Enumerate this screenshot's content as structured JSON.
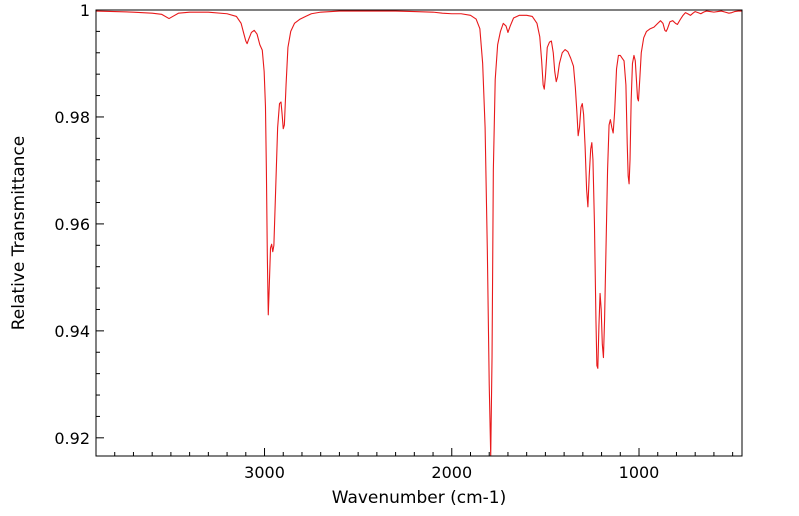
{
  "chart_data": {
    "type": "line",
    "title": "",
    "xlabel": "Wavenumber (cm-1)",
    "ylabel": "Relative Transmittance",
    "x_reversed": true,
    "xlim": [
      3900,
      450
    ],
    "ylim": [
      0.9166,
      1.0
    ],
    "grid": false,
    "legend": "none",
    "x_ticks": [
      {
        "value": 3000,
        "label": "3000"
      },
      {
        "value": 2000,
        "label": "2000"
      },
      {
        "value": 1000,
        "label": "1000"
      }
    ],
    "y_ticks": [
      {
        "value": 1.0,
        "label": "1"
      },
      {
        "value": 0.98,
        "label": "0.98"
      },
      {
        "value": 0.96,
        "label": "0.96"
      },
      {
        "value": 0.94,
        "label": "0.94"
      },
      {
        "value": 0.92,
        "label": "0.92"
      }
    ],
    "series": [
      {
        "color": "#e8191b",
        "points": [
          [
            3900,
            0.9998
          ],
          [
            3800,
            0.9997
          ],
          [
            3700,
            0.9996
          ],
          [
            3600,
            0.9994
          ],
          [
            3550,
            0.9992
          ],
          [
            3510,
            0.9984
          ],
          [
            3490,
            0.9988
          ],
          [
            3460,
            0.9994
          ],
          [
            3400,
            0.9996
          ],
          [
            3300,
            0.9996
          ],
          [
            3200,
            0.9993
          ],
          [
            3150,
            0.9988
          ],
          [
            3125,
            0.9975
          ],
          [
            3110,
            0.9955
          ],
          [
            3100,
            0.9942
          ],
          [
            3093,
            0.9937
          ],
          [
            3085,
            0.9945
          ],
          [
            3070,
            0.9958
          ],
          [
            3055,
            0.9962
          ],
          [
            3040,
            0.9955
          ],
          [
            3025,
            0.9935
          ],
          [
            3012,
            0.9925
          ],
          [
            3002,
            0.9885
          ],
          [
            2995,
            0.982
          ],
          [
            2990,
            0.97
          ],
          [
            2985,
            0.954
          ],
          [
            2980,
            0.943
          ],
          [
            2975,
            0.948
          ],
          [
            2968,
            0.9555
          ],
          [
            2962,
            0.9562
          ],
          [
            2956,
            0.9548
          ],
          [
            2950,
            0.956
          ],
          [
            2940,
            0.967
          ],
          [
            2930,
            0.978
          ],
          [
            2920,
            0.9825
          ],
          [
            2912,
            0.9828
          ],
          [
            2906,
            0.9805
          ],
          [
            2900,
            0.9778
          ],
          [
            2894,
            0.9785
          ],
          [
            2885,
            0.986
          ],
          [
            2875,
            0.993
          ],
          [
            2860,
            0.996
          ],
          [
            2840,
            0.9975
          ],
          [
            2810,
            0.9983
          ],
          [
            2780,
            0.9988
          ],
          [
            2750,
            0.9993
          ],
          [
            2700,
            0.9996
          ],
          [
            2600,
            0.9998
          ],
          [
            2500,
            0.9998
          ],
          [
            2400,
            0.9998
          ],
          [
            2300,
            0.9998
          ],
          [
            2200,
            0.9997
          ],
          [
            2100,
            0.9996
          ],
          [
            2050,
            0.9994
          ],
          [
            2000,
            0.9993
          ],
          [
            1950,
            0.9993
          ],
          [
            1900,
            0.999
          ],
          [
            1870,
            0.9983
          ],
          [
            1850,
            0.9965
          ],
          [
            1835,
            0.99
          ],
          [
            1822,
            0.978
          ],
          [
            1810,
            0.955
          ],
          [
            1800,
            0.93
          ],
          [
            1792,
            0.9166
          ],
          [
            1785,
            0.935
          ],
          [
            1778,
            0.97
          ],
          [
            1768,
            0.987
          ],
          [
            1755,
            0.9935
          ],
          [
            1740,
            0.996
          ],
          [
            1725,
            0.9975
          ],
          [
            1710,
            0.997
          ],
          [
            1700,
            0.9958
          ],
          [
            1688,
            0.997
          ],
          [
            1670,
            0.9985
          ],
          [
            1640,
            0.999
          ],
          [
            1600,
            0.999
          ],
          [
            1570,
            0.9988
          ],
          [
            1545,
            0.9975
          ],
          [
            1530,
            0.995
          ],
          [
            1520,
            0.9905
          ],
          [
            1512,
            0.986
          ],
          [
            1506,
            0.9852
          ],
          [
            1500,
            0.9875
          ],
          [
            1490,
            0.993
          ],
          [
            1478,
            0.994
          ],
          [
            1468,
            0.9942
          ],
          [
            1458,
            0.992
          ],
          [
            1450,
            0.9885
          ],
          [
            1442,
            0.9866
          ],
          [
            1435,
            0.9875
          ],
          [
            1425,
            0.99
          ],
          [
            1410,
            0.992
          ],
          [
            1395,
            0.9926
          ],
          [
            1380,
            0.9922
          ],
          [
            1365,
            0.991
          ],
          [
            1350,
            0.9895
          ],
          [
            1340,
            0.9855
          ],
          [
            1332,
            0.981
          ],
          [
            1325,
            0.9765
          ],
          [
            1318,
            0.978
          ],
          [
            1310,
            0.9818
          ],
          [
            1303,
            0.9825
          ],
          [
            1296,
            0.9805
          ],
          [
            1288,
            0.9745
          ],
          [
            1280,
            0.9665
          ],
          [
            1273,
            0.9632
          ],
          [
            1266,
            0.969
          ],
          [
            1258,
            0.974
          ],
          [
            1252,
            0.9752
          ],
          [
            1246,
            0.972
          ],
          [
            1238,
            0.96
          ],
          [
            1230,
            0.942
          ],
          [
            1225,
            0.9335
          ],
          [
            1220,
            0.933
          ],
          [
            1214,
            0.941
          ],
          [
            1208,
            0.947
          ],
          [
            1202,
            0.944
          ],
          [
            1196,
            0.9375
          ],
          [
            1190,
            0.935
          ],
          [
            1184,
            0.942
          ],
          [
            1176,
            0.956
          ],
          [
            1168,
            0.97
          ],
          [
            1160,
            0.9785
          ],
          [
            1153,
            0.9795
          ],
          [
            1145,
            0.978
          ],
          [
            1138,
            0.977
          ],
          [
            1130,
            0.981
          ],
          [
            1120,
            0.989
          ],
          [
            1110,
            0.9915
          ],
          [
            1100,
            0.9915
          ],
          [
            1090,
            0.991
          ],
          [
            1080,
            0.9905
          ],
          [
            1070,
            0.986
          ],
          [
            1063,
            0.975
          ],
          [
            1058,
            0.969
          ],
          [
            1053,
            0.9675
          ],
          [
            1048,
            0.972
          ],
          [
            1042,
            0.983
          ],
          [
            1035,
            0.99
          ],
          [
            1027,
            0.9915
          ],
          [
            1020,
            0.9905
          ],
          [
            1013,
            0.9865
          ],
          [
            1008,
            0.9835
          ],
          [
            1003,
            0.983
          ],
          [
            996,
            0.987
          ],
          [
            988,
            0.992
          ],
          [
            975,
            0.9948
          ],
          [
            960,
            0.996
          ],
          [
            940,
            0.9965
          ],
          [
            920,
            0.9968
          ],
          [
            900,
            0.9975
          ],
          [
            885,
            0.998
          ],
          [
            872,
            0.9975
          ],
          [
            862,
            0.9962
          ],
          [
            855,
            0.996
          ],
          [
            848,
            0.9965
          ],
          [
            835,
            0.9978
          ],
          [
            820,
            0.998
          ],
          [
            805,
            0.9975
          ],
          [
            795,
            0.9973
          ],
          [
            780,
            0.9982
          ],
          [
            765,
            0.999
          ],
          [
            752,
            0.9995
          ],
          [
            740,
            0.9993
          ],
          [
            725,
            0.999
          ],
          [
            712,
            0.9994
          ],
          [
            700,
            0.9997
          ],
          [
            685,
            0.9995
          ],
          [
            670,
            0.9993
          ],
          [
            655,
            0.9996
          ],
          [
            640,
            0.9998
          ],
          [
            620,
            0.9997
          ],
          [
            600,
            0.9996
          ],
          [
            580,
            0.9997
          ],
          [
            560,
            0.9998
          ],
          [
            540,
            0.9996
          ],
          [
            520,
            0.9994
          ],
          [
            505,
            0.9995
          ],
          [
            490,
            0.9997
          ],
          [
            470,
            0.9998
          ],
          [
            450,
            0.9998
          ]
        ]
      }
    ]
  }
}
